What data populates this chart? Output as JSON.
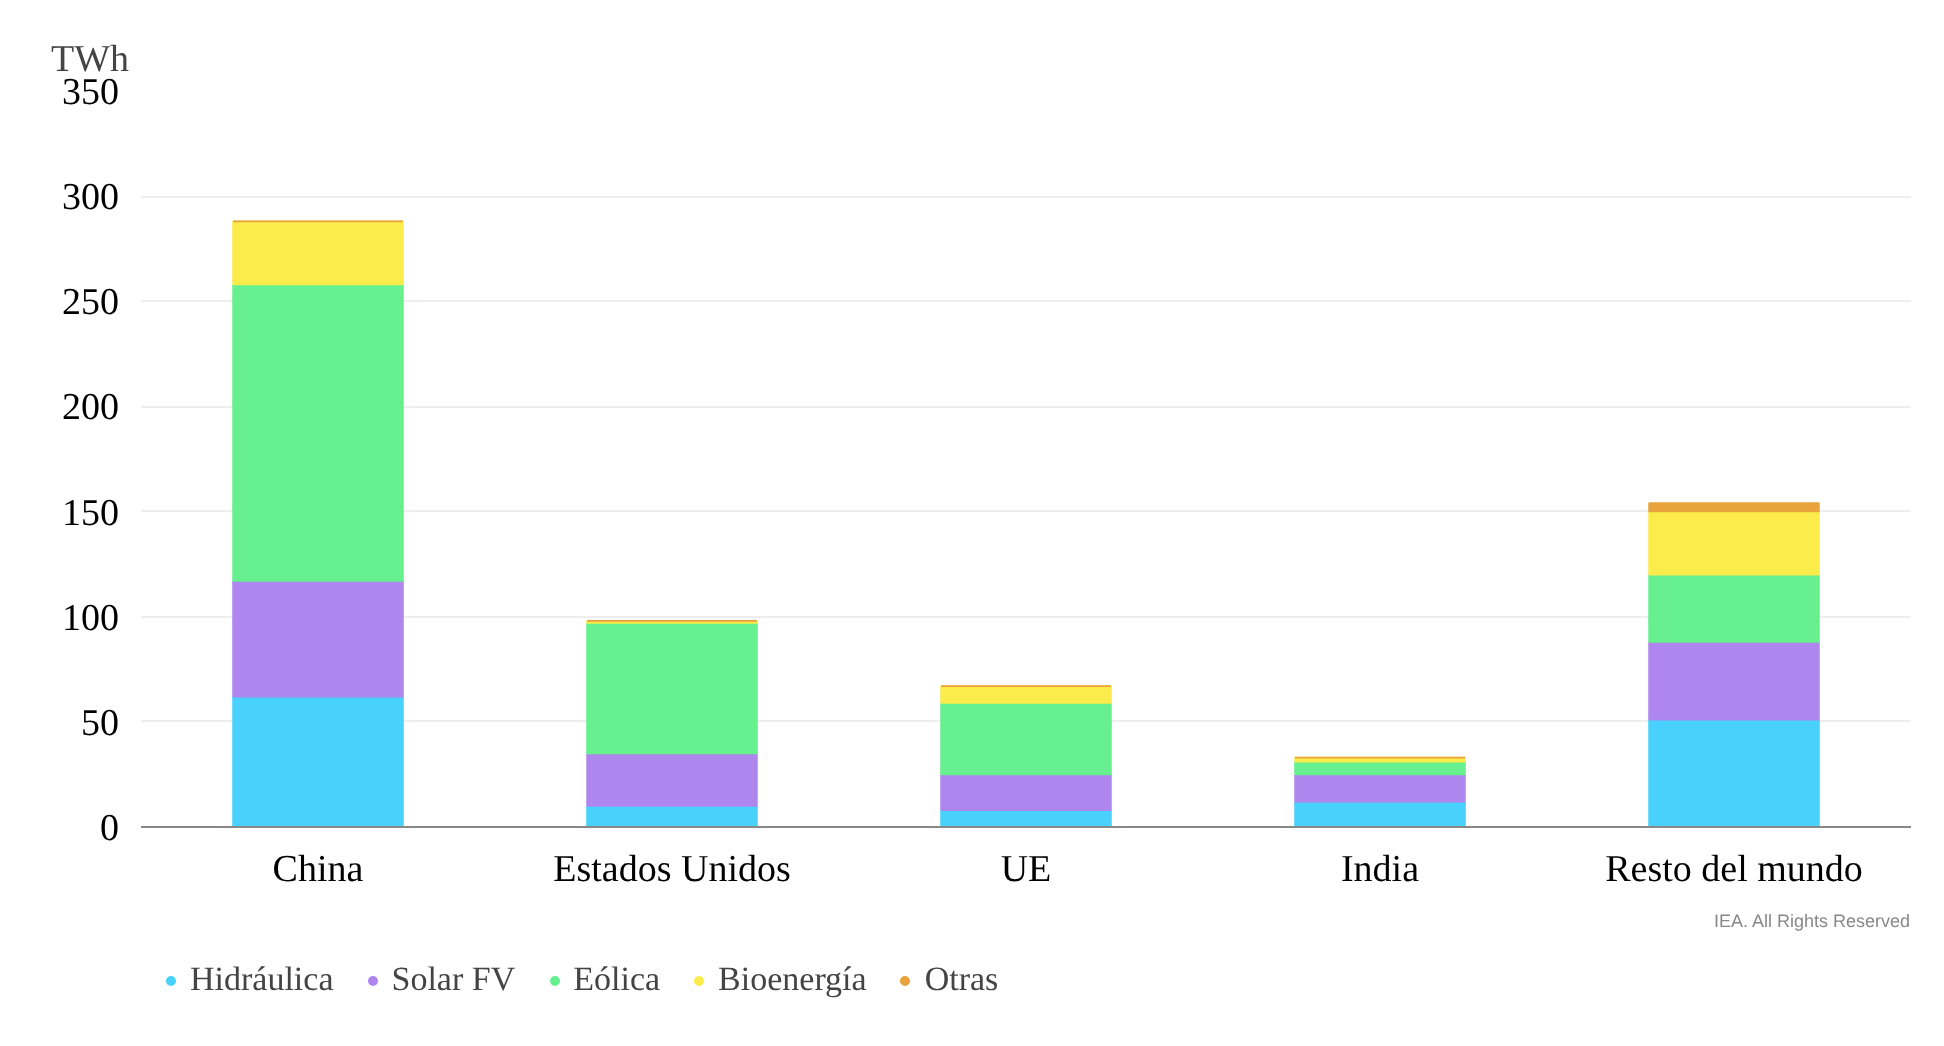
{
  "chart_data": {
    "type": "bar",
    "stacked": true,
    "ylabel": "TWh",
    "categories": [
      "China",
      "Estados Unidos",
      "UE",
      "India",
      "Resto del mundo"
    ],
    "series": [
      {
        "name": "Hidráulica",
        "color": "#48d1fb",
        "values": [
          62,
          10,
          8,
          12,
          51
        ]
      },
      {
        "name": "Solar FV",
        "color": "#ae86ed",
        "values": [
          55,
          25,
          17,
          13,
          37
        ]
      },
      {
        "name": "Eólica",
        "color": "#66f08f",
        "values": [
          141,
          62,
          34,
          6,
          32
        ]
      },
      {
        "name": "Bioenergía",
        "color": "#fbeb4b",
        "values": [
          30,
          1,
          8,
          2,
          30
        ]
      },
      {
        "name": "Otras",
        "color": "#e8a33c",
        "values": [
          0,
          0,
          0,
          0,
          4
        ]
      }
    ],
    "ylim": [
      0,
      350
    ],
    "yticks": [
      0,
      50,
      100,
      150,
      200,
      250,
      300,
      350
    ],
    "grid": "y",
    "legend": "bottom",
    "annotations": [
      "IEA. All Rights Reserved"
    ]
  }
}
